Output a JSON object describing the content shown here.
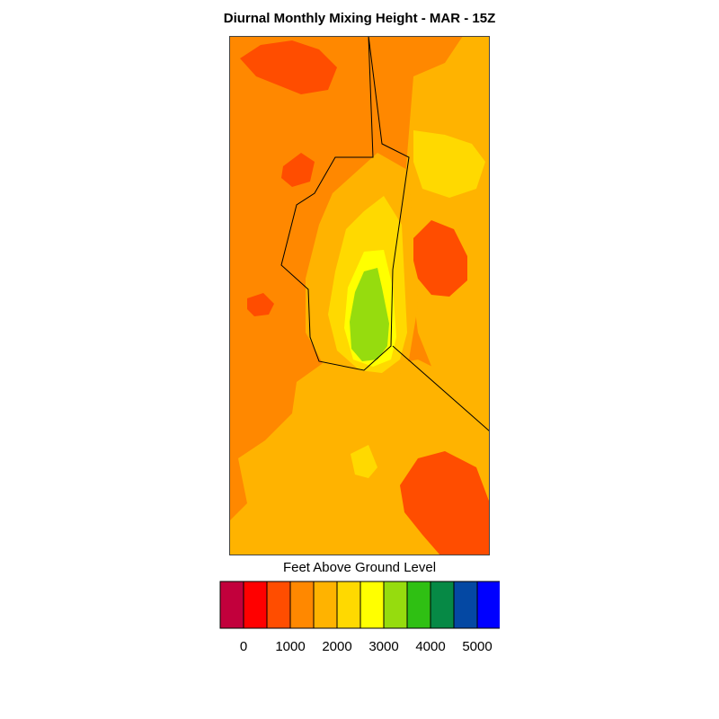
{
  "title": "Diurnal Monthly Mixing Height - MAR - 15Z",
  "legend": {
    "label": "Feet Above Ground Level",
    "colors": [
      "#c2003c",
      "#ff0000",
      "#ff4d00",
      "#ff8800",
      "#ffb300",
      "#ffd900",
      "#ffff00",
      "#96dc0e",
      "#2fc013",
      "#068945",
      "#0448a3",
      "#0000ff"
    ],
    "ticks": [
      {
        "value": 0,
        "label": "0"
      },
      {
        "value": 1000,
        "label": "1000"
      },
      {
        "value": 2000,
        "label": "2000"
      },
      {
        "value": 3000,
        "label": "3000"
      },
      {
        "value": 4000,
        "label": "4000"
      },
      {
        "value": 5000,
        "label": "5000"
      }
    ]
  },
  "map": {
    "background_color": "#ff8800",
    "regions": [
      {
        "name": "nw-low-patch",
        "color": "#ff4d00"
      },
      {
        "name": "east-higher-band",
        "color": "#ffb300"
      },
      {
        "name": "east-yellow-patch",
        "color": "#ffd900"
      },
      {
        "name": "central-high-zone",
        "color": "#ffb300"
      },
      {
        "name": "central-yellow-ring",
        "color": "#ffd900"
      },
      {
        "name": "central-bright-ring",
        "color": "#ffff00"
      },
      {
        "name": "central-peak",
        "color": "#96dc0e"
      },
      {
        "name": "east-low-patch",
        "color": "#ff4d00"
      },
      {
        "name": "se-low-patch",
        "color": "#ff4d00"
      },
      {
        "name": "south-higher-band",
        "color": "#ffb300"
      },
      {
        "name": "south-yellow-patch",
        "color": "#ffd900"
      }
    ]
  }
}
